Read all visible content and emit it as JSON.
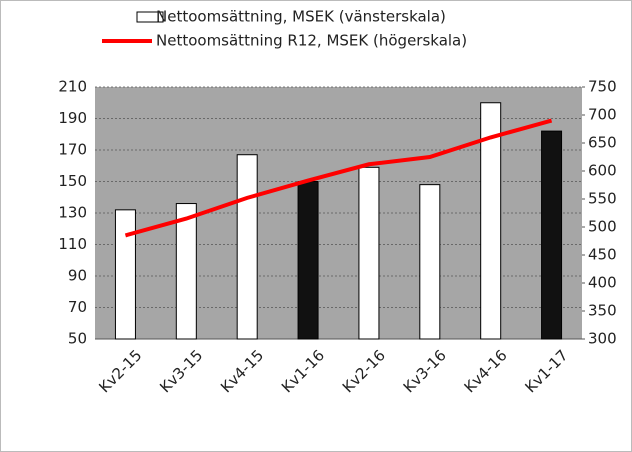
{
  "chart_data": {
    "type": "bar_line",
    "categories": [
      "Kv2-15",
      "Kv3-15",
      "Kv4-15",
      "Kv1-16",
      "Kv2-16",
      "Kv3-16",
      "Kv4-16",
      "Kv1-17"
    ],
    "series": [
      {
        "name": "Nettoomsättning, MSEK (vänsterskala)",
        "type": "bar",
        "color": "#ffffff",
        "colors": [
          "#ffffff",
          "#ffffff",
          "#ffffff",
          "#111111",
          "#ffffff",
          "#ffffff",
          "#ffffff",
          "#111111"
        ],
        "values": [
          132,
          136,
          167,
          150,
          159,
          148,
          200,
          182
        ]
      },
      {
        "name": "Nettoomsättning R12, MSEK (högerskala)",
        "type": "line",
        "axis": "y2",
        "color": "#ff0000",
        "values": [
          485,
          515,
          552,
          583,
          612,
          625,
          660,
          690
        ]
      }
    ],
    "ylim": [
      50,
      210
    ],
    "yticks": [
      50,
      70,
      90,
      110,
      130,
      150,
      170,
      190,
      210
    ],
    "y2lim": [
      300,
      750
    ],
    "y2ticks": [
      300,
      350,
      400,
      450,
      500,
      550,
      600,
      650,
      700,
      750
    ],
    "grid": true,
    "legend": "top"
  }
}
